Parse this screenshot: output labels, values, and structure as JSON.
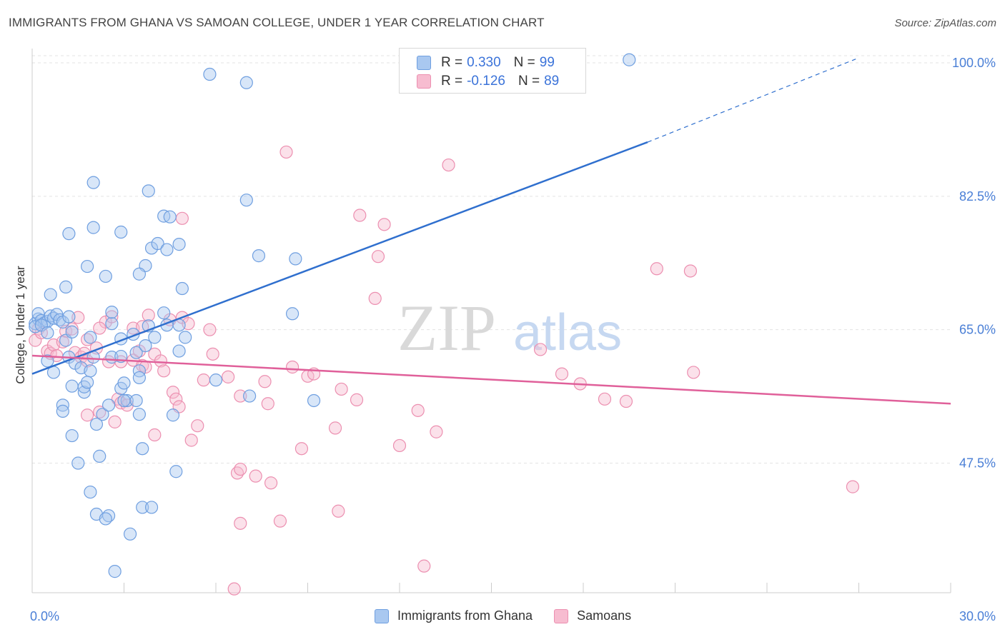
{
  "header": {
    "title": "IMMIGRANTS FROM GHANA VS SAMOAN COLLEGE, UNDER 1 YEAR CORRELATION CHART",
    "source": "Source: ZipAtlas.com"
  },
  "watermark": {
    "zip": "ZIP",
    "atlas": "atlas"
  },
  "legend": {
    "rows": [
      {
        "r_label": "R =",
        "r_value": "0.330",
        "n_label": "N =",
        "n_value": "99"
      },
      {
        "r_label": "R =",
        "r_value": "-0.126",
        "n_label": "N =",
        "n_value": "89"
      }
    ],
    "bottom": [
      "Immigrants from Ghana",
      "Samoans"
    ]
  },
  "colors": {
    "ghana_fill": "#a9c8f0",
    "ghana_stroke": "#6f9fe0",
    "ghana_line": "#2f6fce",
    "samoan_fill": "#f7bcd0",
    "samoan_stroke": "#ec8fb0",
    "samoan_line": "#e0609a",
    "axis_text": "#4a7fd6",
    "grid": "#e3e3e3"
  },
  "chart_data": {
    "type": "scatter",
    "title": "IMMIGRANTS FROM GHANA VS SAMOAN COLLEGE, UNDER 1 YEAR CORRELATION CHART",
    "xlabel": "",
    "ylabel": "College, Under 1 year",
    "xlim": [
      0,
      30
    ],
    "ylim": [
      30.5,
      101.5
    ],
    "x_tick_labels": [
      "0.0%",
      "30.0%"
    ],
    "y_ticks": [
      47.5,
      65.0,
      82.5,
      100.0
    ],
    "y_tick_labels": [
      "47.5%",
      "65.0%",
      "82.5%",
      "100.0%"
    ],
    "grid": true,
    "legend_position": "top-center",
    "series": [
      {
        "name": "Immigrants from Ghana",
        "r": 0.33,
        "n": 99,
        "trend": {
          "x_start": 0.0,
          "y_start": 59.2,
          "x_end_solid": 20.1,
          "y_end_solid": 89.6,
          "x_end_dashed": 26.9,
          "y_end_dashed": 100.5
        },
        "points": [
          [
            0.1,
            65.8
          ],
          [
            0.2,
            66.4
          ],
          [
            0.2,
            67.1
          ],
          [
            0.3,
            66.2
          ],
          [
            0.4,
            65.9
          ],
          [
            0.5,
            66.1
          ],
          [
            0.6,
            66.8
          ],
          [
            0.7,
            66.5
          ],
          [
            0.8,
            67.0
          ],
          [
            0.9,
            66.3
          ],
          [
            1.0,
            66.0
          ],
          [
            1.2,
            66.7
          ],
          [
            0.1,
            65.4
          ],
          [
            0.3,
            65.6
          ],
          [
            0.5,
            64.6
          ],
          [
            0.6,
            69.6
          ],
          [
            0.5,
            60.9
          ],
          [
            0.7,
            59.4
          ],
          [
            1.1,
            63.6
          ],
          [
            1.3,
            64.7
          ],
          [
            1.2,
            61.4
          ],
          [
            1.4,
            60.6
          ],
          [
            1.6,
            60.0
          ],
          [
            1.9,
            59.6
          ],
          [
            1.3,
            57.6
          ],
          [
            1.7,
            56.8
          ],
          [
            1.7,
            57.5
          ],
          [
            1.8,
            58.1
          ],
          [
            1.0,
            55.1
          ],
          [
            1.0,
            54.3
          ],
          [
            1.3,
            51.1
          ],
          [
            1.5,
            47.5
          ],
          [
            2.2,
            48.4
          ],
          [
            1.9,
            43.7
          ],
          [
            2.1,
            40.8
          ],
          [
            2.5,
            40.6
          ],
          [
            2.4,
            40.2
          ],
          [
            3.2,
            38.2
          ],
          [
            2.7,
            33.3
          ],
          [
            1.9,
            64.0
          ],
          [
            2.0,
            61.4
          ],
          [
            2.6,
            61.4
          ],
          [
            2.6,
            65.8
          ],
          [
            2.6,
            67.3
          ],
          [
            2.9,
            63.8
          ],
          [
            3.3,
            64.4
          ],
          [
            2.9,
            61.5
          ],
          [
            3.4,
            62.0
          ],
          [
            3.5,
            59.6
          ],
          [
            3.5,
            58.7
          ],
          [
            2.9,
            57.3
          ],
          [
            3.0,
            58.0
          ],
          [
            3.1,
            55.7
          ],
          [
            2.3,
            53.9
          ],
          [
            2.5,
            55.1
          ],
          [
            2.1,
            52.6
          ],
          [
            3.0,
            55.7
          ],
          [
            3.4,
            55.7
          ],
          [
            3.5,
            53.9
          ],
          [
            3.6,
            49.4
          ],
          [
            3.6,
            41.7
          ],
          [
            3.9,
            41.7
          ],
          [
            3.7,
            62.9
          ],
          [
            3.8,
            65.5
          ],
          [
            4.0,
            64.0
          ],
          [
            4.3,
            67.2
          ],
          [
            3.9,
            75.7
          ],
          [
            4.1,
            76.3
          ],
          [
            4.4,
            75.5
          ],
          [
            4.8,
            76.2
          ],
          [
            4.3,
            79.9
          ],
          [
            4.5,
            79.8
          ],
          [
            3.7,
            73.4
          ],
          [
            3.5,
            72.3
          ],
          [
            2.4,
            72.0
          ],
          [
            1.8,
            73.3
          ],
          [
            1.1,
            70.6
          ],
          [
            2.9,
            77.8
          ],
          [
            2.0,
            78.4
          ],
          [
            1.2,
            77.6
          ],
          [
            2.0,
            84.3
          ],
          [
            3.8,
            83.2
          ],
          [
            4.9,
            70.4
          ],
          [
            5.0,
            64.0
          ],
          [
            4.8,
            62.2
          ],
          [
            4.6,
            53.8
          ],
          [
            4.7,
            46.4
          ],
          [
            4.8,
            65.6
          ],
          [
            4.4,
            65.6
          ],
          [
            6.0,
            58.4
          ],
          [
            7.1,
            56.3
          ],
          [
            7.4,
            74.7
          ],
          [
            8.5,
            67.1
          ],
          [
            8.6,
            74.3
          ],
          [
            9.2,
            55.7
          ],
          [
            7.0,
            82.0
          ],
          [
            5.8,
            98.5
          ],
          [
            7.0,
            97.4
          ],
          [
            19.5,
            100.4
          ]
        ]
      },
      {
        "name": "Samoans",
        "r": -0.126,
        "n": 89,
        "trend": {
          "x_start": 0.0,
          "y_start": 61.6,
          "x_end": 30.0,
          "y_end": 55.3
        },
        "points": [
          [
            0.1,
            63.6
          ],
          [
            0.2,
            65.1
          ],
          [
            0.3,
            64.6
          ],
          [
            0.5,
            62.2
          ],
          [
            0.6,
            61.9
          ],
          [
            0.7,
            63.0
          ],
          [
            0.8,
            61.6
          ],
          [
            1.0,
            63.4
          ],
          [
            1.1,
            64.8
          ],
          [
            1.3,
            65.1
          ],
          [
            1.4,
            62.0
          ],
          [
            1.6,
            61.4
          ],
          [
            1.7,
            61.9
          ],
          [
            1.8,
            60.9
          ],
          [
            1.5,
            66.6
          ],
          [
            1.8,
            63.7
          ],
          [
            2.1,
            62.6
          ],
          [
            2.4,
            66.0
          ],
          [
            2.6,
            66.7
          ],
          [
            2.2,
            65.2
          ],
          [
            2.5,
            60.8
          ],
          [
            2.9,
            60.8
          ],
          [
            3.3,
            61.0
          ],
          [
            3.5,
            62.2
          ],
          [
            3.6,
            60.3
          ],
          [
            3.7,
            60.1
          ],
          [
            4.0,
            61.8
          ],
          [
            4.2,
            60.9
          ],
          [
            4.3,
            59.6
          ],
          [
            3.3,
            65.2
          ],
          [
            3.6,
            65.4
          ],
          [
            3.8,
            66.9
          ],
          [
            2.8,
            55.9
          ],
          [
            2.9,
            55.4
          ],
          [
            2.7,
            52.9
          ],
          [
            3.1,
            55.1
          ],
          [
            1.8,
            53.8
          ],
          [
            2.2,
            54.2
          ],
          [
            4.0,
            51.2
          ],
          [
            4.6,
            56.8
          ],
          [
            4.7,
            55.9
          ],
          [
            4.8,
            54.9
          ],
          [
            5.2,
            50.5
          ],
          [
            5.4,
            52.4
          ],
          [
            4.5,
            66.3
          ],
          [
            4.9,
            66.6
          ],
          [
            5.1,
            65.8
          ],
          [
            5.8,
            65.0
          ],
          [
            5.9,
            61.8
          ],
          [
            5.6,
            58.4
          ],
          [
            6.4,
            58.8
          ],
          [
            6.7,
            46.2
          ],
          [
            6.8,
            46.7
          ],
          [
            6.8,
            39.6
          ],
          [
            6.8,
            56.3
          ],
          [
            7.3,
            45.8
          ],
          [
            7.6,
            58.2
          ],
          [
            7.7,
            55.3
          ],
          [
            7.8,
            44.9
          ],
          [
            8.1,
            39.9
          ],
          [
            8.5,
            60.1
          ],
          [
            8.8,
            49.4
          ],
          [
            9.0,
            58.9
          ],
          [
            9.2,
            59.2
          ],
          [
            9.9,
            52.1
          ],
          [
            10.1,
            57.2
          ],
          [
            10.0,
            41.2
          ],
          [
            10.6,
            55.8
          ],
          [
            11.2,
            69.1
          ],
          [
            11.5,
            78.8
          ],
          [
            12.0,
            49.8
          ],
          [
            12.6,
            54.4
          ],
          [
            12.8,
            34.0
          ],
          [
            13.2,
            51.6
          ],
          [
            13.6,
            86.6
          ],
          [
            16.6,
            62.4
          ],
          [
            17.3,
            59.2
          ],
          [
            17.9,
            57.9
          ],
          [
            18.7,
            55.9
          ],
          [
            19.4,
            55.6
          ],
          [
            20.4,
            73.0
          ],
          [
            21.5,
            72.7
          ],
          [
            21.6,
            59.4
          ],
          [
            26.8,
            44.4
          ],
          [
            6.6,
            31.0
          ],
          [
            8.3,
            88.3
          ],
          [
            10.7,
            80.0
          ],
          [
            11.3,
            74.6
          ],
          [
            4.9,
            79.6
          ]
        ]
      }
    ]
  }
}
